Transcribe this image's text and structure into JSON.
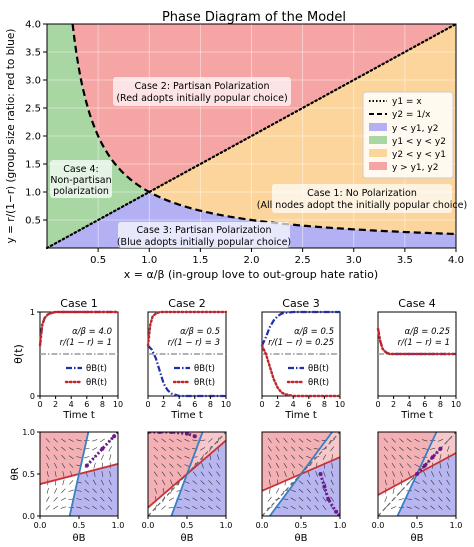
{
  "colors": {
    "red_region": "#f6a5a5",
    "orange_region": "#fbd59c",
    "blue_region": "#b3b1f4",
    "green_region": "#a9d7a4",
    "theta_B_line": "#1f2fa8",
    "theta_R_line": "#c0262c",
    "ref_line": "#9a9a9a",
    "phase_red": "#f2a3a8",
    "phase_blue": "#aaa9ee",
    "phase_line_red": "#c8323a",
    "phase_line_blue": "#3b7fc4",
    "trajectory": "#6a1b8a"
  },
  "chart_data": [
    {
      "type": "area",
      "id": "phase-diagram",
      "title": "Phase Diagram of the Model",
      "xlabel": "x = α/β (in-group love to out-group hate ratio)",
      "ylabel": "y = r/(1−r) (group size ratio: red to blue)",
      "xlim": [
        0,
        4
      ],
      "ylim": [
        0,
        4
      ],
      "xticks": [
        "0.5",
        "1.0",
        "1.5",
        "2.0",
        "2.5",
        "3.0",
        "3.5",
        "4.0"
      ],
      "xtick_values": [
        0.5,
        1.0,
        1.5,
        2.0,
        2.5,
        3.0,
        3.5,
        4.0
      ],
      "yticks": [
        "0.5",
        "1.0",
        "1.5",
        "2.0",
        "2.5",
        "3.0",
        "3.5",
        "4.0"
      ],
      "ytick_values": [
        0.5,
        1.0,
        1.5,
        2.0,
        2.5,
        3.0,
        3.5,
        4.0
      ],
      "grid": true,
      "legend_position": "right",
      "lines": [
        {
          "name": "y1 = x",
          "style": "dotted",
          "formula": "x"
        },
        {
          "name": "y2 = 1/x",
          "style": "dashed",
          "formula": "1/x"
        }
      ],
      "regions": [
        {
          "name": "y < y1, y2",
          "color": "#b3b1f4"
        },
        {
          "name": "y1 < y < y2",
          "color": "#a9d7a4"
        },
        {
          "name": "y2 < y < y1",
          "color": "#fbd59c"
        },
        {
          "name": "y > y1, y2",
          "color": "#f6a5a5"
        }
      ],
      "annotations": [
        {
          "line1": "Case 2: Partisan Polarization",
          "line2": "(Red adopts initially popular choice)",
          "x": 1.95,
          "y": 2.88
        },
        {
          "line1": "Case 4:",
          "line2": "Non-partisan",
          "line3": "polarization",
          "x": 0.22,
          "y": 1.05
        },
        {
          "line1": "Case 1: No Polarization",
          "line2": "(All nodes adopt the initially popular choice)",
          "x": 2.75,
          "y": 0.85
        },
        {
          "line1": "Case 3: Partisan Polarization",
          "line2": "(Blue adopts initially popular choice)",
          "x": 1.45,
          "y": 0.18
        }
      ]
    },
    {
      "type": "line",
      "id": "case-1-time",
      "title": "Case 1",
      "xlabel": "Time t",
      "ylabel": "θ(t)",
      "xlim": [
        0,
        10
      ],
      "ylim": [
        0,
        1
      ],
      "xticks": [
        "0",
        "2",
        "4",
        "6",
        "8",
        "10"
      ],
      "yticks": [
        "0",
        "1"
      ],
      "params": [
        "α/β = 4.0",
        "r/(1 − r) = 1"
      ],
      "legend": [
        "θB(t)",
        "θR(t)"
      ],
      "series": [
        {
          "name": "θB(t)",
          "style": "dashdot",
          "x": [
            0,
            0.3,
            0.6,
            1.0,
            1.5,
            2.0,
            3.0,
            10
          ],
          "y": [
            0.6,
            0.85,
            0.93,
            0.97,
            0.99,
            1.0,
            1.0,
            1.0
          ]
        },
        {
          "name": "θR(t)",
          "style": "dotted",
          "x": [
            0,
            0.3,
            0.6,
            1.0,
            1.5,
            2.0,
            3.0,
            10
          ],
          "y": [
            0.6,
            0.85,
            0.93,
            0.97,
            0.99,
            1.0,
            1.0,
            1.0
          ]
        }
      ]
    },
    {
      "type": "line",
      "id": "case-2-time",
      "title": "Case 2",
      "xlabel": "Time t",
      "ylabel": "",
      "xlim": [
        0,
        10
      ],
      "ylim": [
        0,
        1
      ],
      "xticks": [
        "0",
        "2",
        "4",
        "6",
        "8",
        "10"
      ],
      "yticks": [],
      "params": [
        "α/β = 0.5",
        "r/(1 − r) = 3"
      ],
      "legend": [
        "θB(t)",
        "θR(t)"
      ],
      "series": [
        {
          "name": "θB(t)",
          "style": "dashdot",
          "x": [
            0,
            0.5,
            1.0,
            1.5,
            2.0,
            2.5,
            3.0,
            4.0,
            10
          ],
          "y": [
            0.6,
            0.55,
            0.45,
            0.3,
            0.15,
            0.07,
            0.03,
            0.0,
            0.0
          ]
        },
        {
          "name": "θR(t)",
          "style": "dotted",
          "x": [
            0,
            0.3,
            0.6,
            1.0,
            1.5,
            2.0,
            10
          ],
          "y": [
            0.6,
            0.85,
            0.95,
            0.98,
            1.0,
            1.0,
            1.0
          ]
        }
      ]
    },
    {
      "type": "line",
      "id": "case-3-time",
      "title": "Case 3",
      "xlabel": "Time t",
      "ylabel": "",
      "xlim": [
        0,
        10
      ],
      "ylim": [
        0,
        1
      ],
      "xticks": [
        "0",
        "2",
        "4",
        "6",
        "8",
        "10"
      ],
      "yticks": [],
      "params": [
        "α/β = 0.5",
        "r/(1 − r) = 0.25"
      ],
      "legend": [
        "θB(t)",
        "θR(t)"
      ],
      "series": [
        {
          "name": "θB(t)",
          "style": "dashdot",
          "x": [
            0,
            0.5,
            1.0,
            1.5,
            2.0,
            2.5,
            3.0,
            4.0,
            10
          ],
          "y": [
            0.6,
            0.7,
            0.82,
            0.9,
            0.95,
            0.98,
            0.99,
            1.0,
            1.0
          ]
        },
        {
          "name": "θR(t)",
          "style": "dotted",
          "x": [
            0,
            0.5,
            1.0,
            1.5,
            2.0,
            2.5,
            3.0,
            4.0,
            10
          ],
          "y": [
            0.6,
            0.5,
            0.35,
            0.2,
            0.1,
            0.04,
            0.02,
            0.0,
            0.0
          ]
        }
      ]
    },
    {
      "type": "line",
      "id": "case-4-time",
      "title": "Case 4",
      "xlabel": "Time t",
      "ylabel": "",
      "xlim": [
        0,
        10
      ],
      "ylim": [
        0,
        1
      ],
      "xticks": [
        "0",
        "2",
        "4",
        "6",
        "8",
        "10"
      ],
      "yticks": [],
      "params": [
        "α/β = 0.25",
        "r/(1 − r) = 1"
      ],
      "legend": [
        "θB(t)",
        "θR(t)"
      ],
      "series": [
        {
          "name": "θB(t)",
          "style": "dashdot",
          "x": [
            0,
            0.3,
            0.6,
            1.0,
            1.5,
            10
          ],
          "y": [
            0.8,
            0.65,
            0.56,
            0.52,
            0.5,
            0.5
          ]
        },
        {
          "name": "θR(t)",
          "style": "dotted",
          "x": [
            0,
            0.3,
            0.6,
            1.0,
            1.5,
            10
          ],
          "y": [
            0.8,
            0.65,
            0.56,
            0.52,
            0.5,
            0.5
          ]
        }
      ]
    },
    {
      "type": "scatter",
      "id": "case-1-phase",
      "xlabel": "θB",
      "ylabel": "θR",
      "xlim": [
        0,
        1
      ],
      "ylim": [
        0,
        1
      ],
      "xticks": [
        "0.0",
        "0.5",
        "1.0"
      ],
      "yticks": [
        "0.0",
        "0.5",
        "1.0"
      ],
      "nullcline_red": [
        [
          0,
          0.38
        ],
        [
          1,
          0.62
        ]
      ],
      "nullcline_blue": [
        [
          0.38,
          0
        ],
        [
          0.62,
          1
        ]
      ],
      "trajectory": [
        [
          0.6,
          0.6
        ],
        [
          0.8,
          0.8
        ],
        [
          0.95,
          0.95
        ],
        [
          1,
          1
        ]
      ]
    },
    {
      "type": "scatter",
      "id": "case-2-phase",
      "xlabel": "θB",
      "ylabel": "",
      "xlim": [
        0,
        1
      ],
      "ylim": [
        0,
        1
      ],
      "xticks": [
        "0.0",
        "0.5",
        "1.0"
      ],
      "yticks": [],
      "nullcline_red": [
        [
          0,
          0.1
        ],
        [
          1,
          0.9
        ]
      ],
      "nullcline_blue": [
        [
          0.3,
          0
        ],
        [
          0.7,
          1
        ]
      ],
      "diagonal": [
        [
          0,
          0
        ],
        [
          1,
          1
        ]
      ],
      "trajectory": [
        [
          0.6,
          0.95
        ],
        [
          0.5,
          0.98
        ],
        [
          0.3,
          1.0
        ],
        [
          0.15,
          1.0
        ],
        [
          0.0,
          1.0
        ]
      ]
    },
    {
      "type": "scatter",
      "id": "case-3-phase",
      "xlabel": "θB",
      "ylabel": "",
      "xlim": [
        0,
        1
      ],
      "ylim": [
        0,
        1
      ],
      "xticks": [
        "0.0",
        "0.5",
        "1.0"
      ],
      "yticks": [],
      "nullcline_red": [
        [
          0,
          0.3
        ],
        [
          1,
          0.7
        ]
      ],
      "nullcline_blue": [
        [
          0.1,
          0
        ],
        [
          0.9,
          1
        ]
      ],
      "diagonal": [
        [
          0,
          0
        ],
        [
          1,
          1
        ]
      ],
      "trajectory": [
        [
          0.75,
          0.5
        ],
        [
          0.8,
          0.35
        ],
        [
          0.85,
          0.2
        ],
        [
          0.95,
          0.05
        ],
        [
          1.0,
          0.0
        ]
      ]
    },
    {
      "type": "scatter",
      "id": "case-4-phase",
      "xlabel": "θB",
      "ylabel": "",
      "xlim": [
        0,
        1
      ],
      "ylim": [
        0,
        1
      ],
      "xticks": [
        "0.0",
        "0.5",
        "1.0"
      ],
      "yticks": [],
      "nullcline_red": [
        [
          0,
          0.25
        ],
        [
          1,
          0.75
        ]
      ],
      "nullcline_blue": [
        [
          0.25,
          0
        ],
        [
          0.75,
          1
        ]
      ],
      "diagonal": [
        [
          0,
          0
        ],
        [
          1,
          1
        ]
      ],
      "trajectory": [
        [
          0.8,
          0.8
        ],
        [
          0.7,
          0.7
        ],
        [
          0.6,
          0.6
        ],
        [
          0.5,
          0.5
        ]
      ]
    }
  ]
}
